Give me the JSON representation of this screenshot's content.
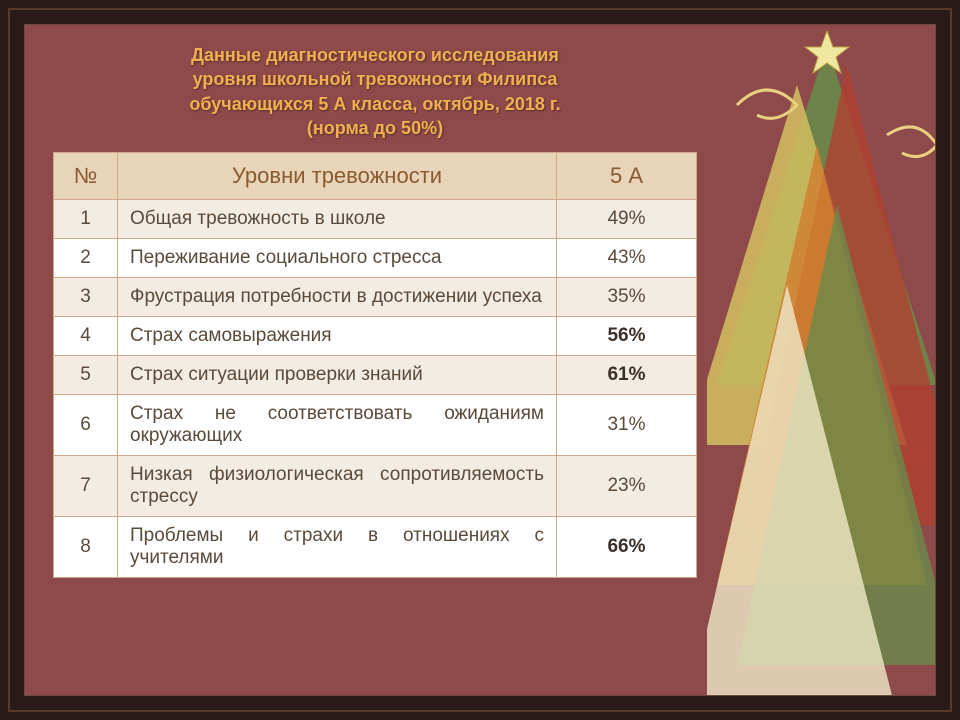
{
  "title": {
    "line1": "Данные диагностического исследования",
    "line2": "уровня школьной тревожности Филипса",
    "line3": "обучающихся 5 А класса, октябрь, 2018 г.",
    "line4": "(норма до 50%)"
  },
  "table": {
    "headers": {
      "num": "№",
      "level": "Уровни тревожности",
      "class": "5 А"
    },
    "header_bg": "#e8d4b8",
    "header_color": "#8a5a30",
    "row_odd_bg": "#f2ece2",
    "row_even_bg": "#ffffff",
    "border_color": "#cfa98a",
    "bold_threshold": 50,
    "rows": [
      {
        "n": "1",
        "desc": "Общая тревожность в школе",
        "val": "49%",
        "bold": false
      },
      {
        "n": "2",
        "desc": "Переживание социального стресса",
        "val": "43%",
        "bold": false
      },
      {
        "n": "3",
        "desc": "Фрустрация потребности в достижении успеха",
        "val": "35%",
        "bold": false
      },
      {
        "n": "4",
        "desc": "Страх самовыражения",
        "val": "56%",
        "bold": true
      },
      {
        "n": "5",
        "desc": "Страх ситуации проверки знаний",
        "val": "61%",
        "bold": true
      },
      {
        "n": "6",
        "desc": "Страх не соответствовать ожиданиям окружающих",
        "val": "31%",
        "bold": false
      },
      {
        "n": "7",
        "desc": "Низкая физиологическая сопротивляемость стрессу",
        "val": "23%",
        "bold": false
      },
      {
        "n": "8",
        "desc": "Проблемы и страхи в отношениях с учителями",
        "val": "66%",
        "bold": true
      }
    ]
  },
  "colors": {
    "page_bg": "#8e4a4a",
    "title_color": "#f0b050",
    "frame_outer": "#5a3a2a",
    "frame_inner": "#6a4a3a"
  },
  "decoration": {
    "tree_colors": [
      "#d4c060",
      "#b04030",
      "#6a8a4a",
      "#d08030",
      "#f0e8c8"
    ],
    "star_color": "#f0e8a0"
  }
}
